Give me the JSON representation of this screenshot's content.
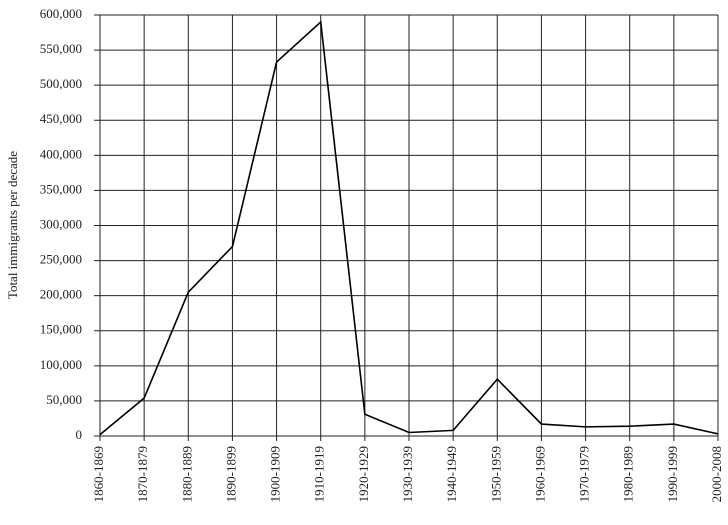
{
  "chart_data": {
    "type": "line",
    "y_label": "Total immigrants per decade",
    "categories": [
      "1860-1869",
      "1870-1879",
      "1880-1889",
      "1890-1899",
      "1900-1909",
      "1910-1919",
      "1920-1929",
      "1930-1939",
      "1940-1949",
      "1950-1959",
      "1960-1969",
      "1970-1979",
      "1980-1989",
      "1990-1999",
      "2000-2008"
    ],
    "values": [
      2000,
      54000,
      205000,
      270000,
      533000,
      590000,
      31000,
      5000,
      8000,
      81000,
      17000,
      13000,
      14000,
      17000,
      3000
    ],
    "color": "#000000",
    "ylim": [
      0,
      600000
    ],
    "yticks": [
      0,
      {
        "value": 50000,
        "label": "50,000"
      },
      {
        "value": 100000,
        "label": "100,000"
      },
      {
        "value": 150000,
        "label": "150,000"
      },
      {
        "value": 200000,
        "label": "200,000"
      },
      {
        "value": 250000,
        "label": "250,000"
      },
      {
        "value": 300000,
        "label": "300,000"
      },
      {
        "value": 350000,
        "label": "350,000"
      },
      {
        "value": 400000,
        "label": "400,000"
      },
      {
        "value": 450000,
        "label": "450,000"
      },
      {
        "value": 500000,
        "label": "500,000"
      },
      {
        "value": 550000,
        "label": "550,000"
      },
      {
        "value": 600000,
        "label": "600,000"
      }
    ],
    "grid": true
  }
}
